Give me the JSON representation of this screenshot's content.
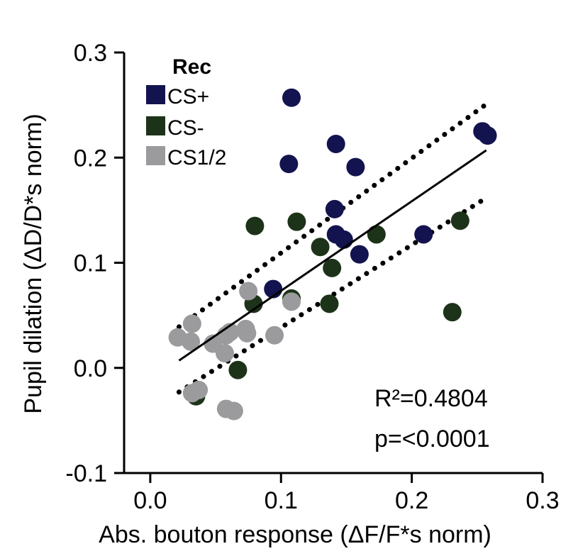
{
  "chart_data": {
    "type": "scatter",
    "title": "",
    "xlabel": "Abs. bouton response (ΔF/F*s norm)",
    "ylabel": "Pupil dilation (ΔD/D*s norm)",
    "xlim": [
      -0.02,
      0.3
    ],
    "ylim": [
      -0.1,
      0.3
    ],
    "x_ticks": [
      0.0,
      0.1,
      0.2,
      0.3
    ],
    "x_tick_labels": [
      "0.0",
      "0.1",
      "0.2",
      "0.3"
    ],
    "y_ticks": [
      -0.1,
      0.0,
      0.1,
      0.2,
      0.3
    ],
    "y_tick_labels": [
      "-0.1",
      "0.0",
      "0.1",
      "0.2",
      "0.3"
    ],
    "grid": false,
    "legend": {
      "title": "Rec",
      "placement": "top-left"
    },
    "series": [
      {
        "name": "CS+",
        "color": "#13134f",
        "points": [
          {
            "x": 0.108,
            "y": 0.257
          },
          {
            "x": 0.106,
            "y": 0.194
          },
          {
            "x": 0.142,
            "y": 0.213
          },
          {
            "x": 0.157,
            "y": 0.191
          },
          {
            "x": 0.141,
            "y": 0.151
          },
          {
            "x": 0.142,
            "y": 0.127
          },
          {
            "x": 0.148,
            "y": 0.122
          },
          {
            "x": 0.16,
            "y": 0.108
          },
          {
            "x": 0.094,
            "y": 0.075
          },
          {
            "x": 0.209,
            "y": 0.127
          },
          {
            "x": 0.254,
            "y": 0.225
          },
          {
            "x": 0.258,
            "y": 0.221
          }
        ]
      },
      {
        "name": "CS-",
        "color": "#1d3319",
        "points": [
          {
            "x": 0.08,
            "y": 0.135
          },
          {
            "x": 0.112,
            "y": 0.139
          },
          {
            "x": 0.13,
            "y": 0.115
          },
          {
            "x": 0.139,
            "y": 0.095
          },
          {
            "x": 0.173,
            "y": 0.127
          },
          {
            "x": 0.237,
            "y": 0.14
          },
          {
            "x": 0.231,
            "y": 0.053
          },
          {
            "x": 0.137,
            "y": 0.061
          },
          {
            "x": 0.108,
            "y": 0.066
          },
          {
            "x": 0.079,
            "y": 0.061
          },
          {
            "x": 0.067,
            "y": -0.002
          },
          {
            "x": 0.035,
            "y": -0.027
          }
        ]
      },
      {
        "name": "CS1/2",
        "color": "#9b9b9e",
        "points": [
          {
            "x": 0.075,
            "y": 0.073
          },
          {
            "x": 0.108,
            "y": 0.063
          },
          {
            "x": 0.095,
            "y": 0.031
          },
          {
            "x": 0.032,
            "y": 0.042
          },
          {
            "x": 0.021,
            "y": 0.029
          },
          {
            "x": 0.031,
            "y": 0.025
          },
          {
            "x": 0.048,
            "y": 0.023
          },
          {
            "x": 0.058,
            "y": 0.031
          },
          {
            "x": 0.061,
            "y": 0.034
          },
          {
            "x": 0.073,
            "y": 0.037
          },
          {
            "x": 0.074,
            "y": 0.033
          },
          {
            "x": 0.057,
            "y": 0.014
          },
          {
            "x": 0.037,
            "y": -0.021
          },
          {
            "x": 0.032,
            "y": -0.024
          },
          {
            "x": 0.058,
            "y": -0.039
          },
          {
            "x": 0.064,
            "y": -0.041
          }
        ]
      }
    ],
    "fit_line": {
      "x": [
        0.022,
        0.257
      ],
      "y": [
        0.007,
        0.207
      ]
    },
    "ci_upper": {
      "x": [
        0.022,
        0.255
      ],
      "y": [
        0.039,
        0.249
      ]
    },
    "ci_lower": {
      "x": [
        0.022,
        0.256
      ],
      "y": [
        -0.023,
        0.161
      ]
    },
    "annotations": [
      "R²=0.4804",
      "p=<0.0001"
    ]
  }
}
